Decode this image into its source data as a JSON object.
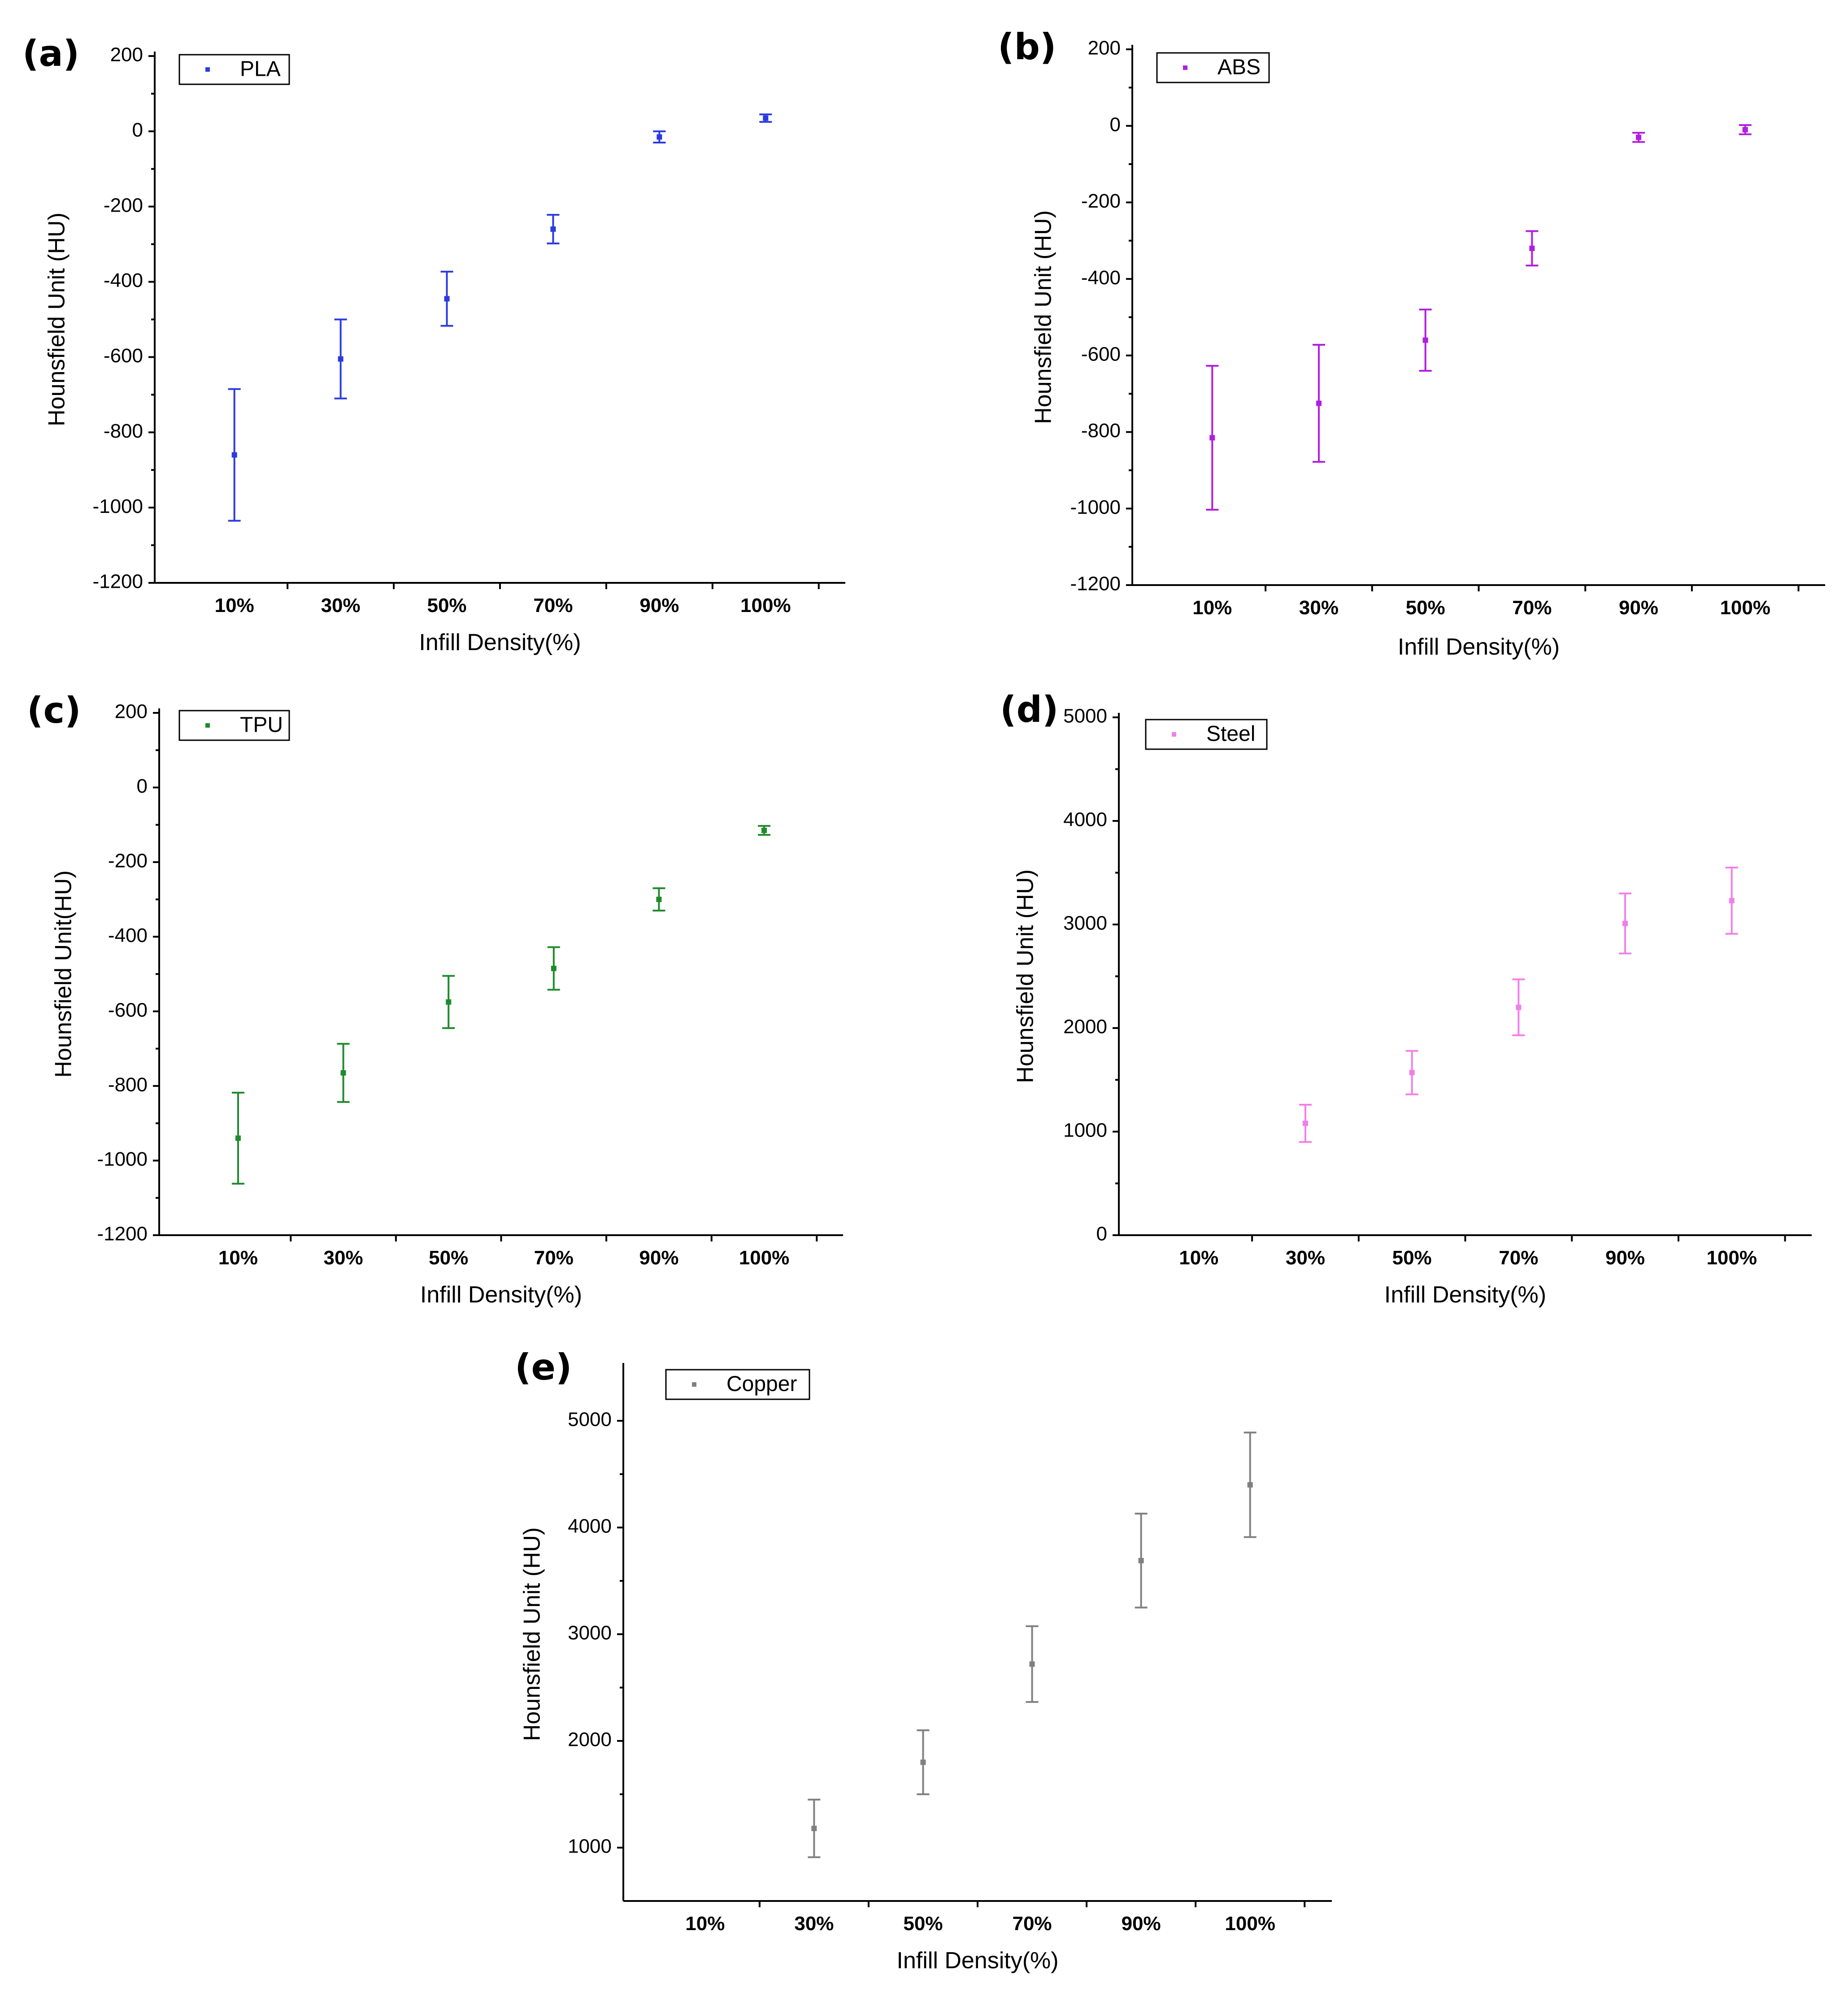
{
  "chart_data": [
    {
      "panel_label": "(a)",
      "type": "scatter",
      "series_name": "PLA",
      "color": "#2b3be0",
      "ylabel": "Hounsfield Unit (HU)",
      "xlabel": "Infill Density(%)",
      "ylim": [
        -1200,
        200
      ],
      "yticks": [
        -1200,
        -1000,
        -800,
        -600,
        -400,
        -200,
        0,
        200
      ],
      "categories": [
        "10%",
        "30%",
        "50%",
        "70%",
        "90%",
        "100%"
      ],
      "values": [
        -860,
        -605,
        -445,
        -260,
        -15,
        35
      ],
      "errors": [
        175,
        105,
        72,
        38,
        15,
        10
      ]
    },
    {
      "panel_label": "(b)",
      "type": "scatter",
      "series_name": "ABS",
      "color": "#b01ee0",
      "ylabel": "Hounsfield Unit (HU)",
      "xlabel": "Infill Density(%)",
      "ylim": [
        -1200,
        200
      ],
      "yticks": [
        -1200,
        -1000,
        -800,
        -600,
        -400,
        -200,
        0,
        200
      ],
      "categories": [
        "10%",
        "30%",
        "50%",
        "70%",
        "90%",
        "100%"
      ],
      "values": [
        -815,
        -725,
        -560,
        -320,
        -30,
        -10
      ],
      "errors": [
        188,
        153,
        80,
        45,
        12,
        12
      ]
    },
    {
      "panel_label": "(c)",
      "type": "scatter",
      "series_name": "TPU",
      "color": "#1f8a2e",
      "ylabel": "Hounsfield Unit(HU)",
      "xlabel": "Infill Density(%)",
      "ylim": [
        -1200,
        200
      ],
      "yticks": [
        -1200,
        -1000,
        -800,
        -600,
        -400,
        -200,
        0,
        200
      ],
      "categories": [
        "10%",
        "30%",
        "50%",
        "70%",
        "90%",
        "100%"
      ],
      "values": [
        -940,
        -765,
        -575,
        -485,
        -300,
        -115
      ],
      "errors": [
        122,
        78,
        70,
        57,
        30,
        12
      ]
    },
    {
      "panel_label": "(d)",
      "type": "scatter",
      "series_name": "Steel",
      "color": "#f27fe8",
      "ylabel": "Hounsfield Unit (HU)",
      "xlabel": "Infill Density(%)",
      "ylim": [
        0,
        5000
      ],
      "yticks": [
        0,
        1000,
        2000,
        3000,
        4000,
        5000
      ],
      "categories": [
        "10%",
        "30%",
        "50%",
        "70%",
        "90%",
        "100%"
      ],
      "values": [
        null,
        1080,
        1570,
        2200,
        3010,
        3230
      ],
      "errors": [
        null,
        180,
        210,
        270,
        290,
        320
      ]
    },
    {
      "panel_label": "(e)",
      "type": "scatter",
      "series_name": "Copper",
      "color": "#808080",
      "ylabel": "Hounsfield Unit (HU)",
      "xlabel": "Infill Density(%)",
      "ylim": [
        500,
        5500
      ],
      "yticks": [
        1000,
        2000,
        3000,
        4000,
        5000
      ],
      "categories": [
        "10%",
        "30%",
        "50%",
        "70%",
        "90%",
        "100%"
      ],
      "values": [
        null,
        1180,
        1800,
        2720,
        3690,
        4400
      ],
      "errors": [
        null,
        270,
        300,
        355,
        440,
        490
      ]
    }
  ]
}
